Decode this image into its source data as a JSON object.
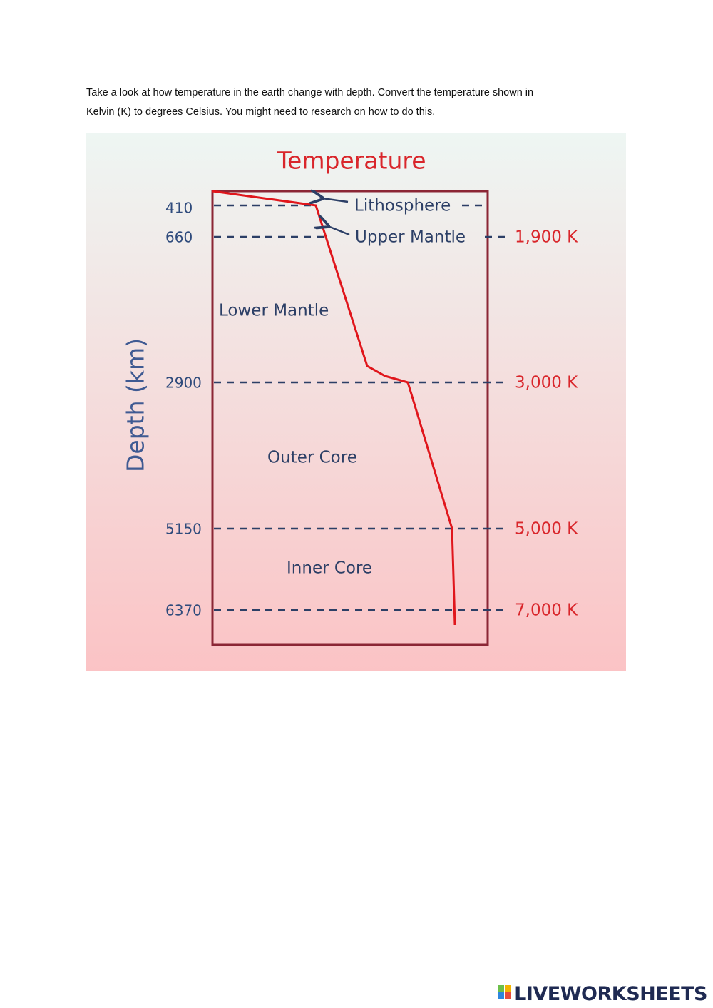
{
  "instructions": [
    "Take a look at how temperature in the earth change with depth. Convert the temperature shown in",
    "Kelvin (K) to degrees Celsius. You might need to research on how to do this."
  ],
  "figure": {
    "title": "Temperature",
    "axis_label": "Depth (km)",
    "rows": [
      {
        "depth": "410",
        "label": "Lithosphere"
      },
      {
        "depth": "660",
        "label": "Upper Mantle",
        "temperature": "1,900 K"
      },
      {
        "depth": "2900",
        "temperature": "3,000 K"
      },
      {
        "depth": "5150",
        "temperature": "5,000 K"
      },
      {
        "depth": "6370",
        "temperature": "7,000 K"
      }
    ],
    "zones": [
      "Lower Mantle",
      "Outer Core",
      "Inner Core"
    ]
  },
  "footer": {
    "brand": "LIVEWORKSHEETS"
  }
}
